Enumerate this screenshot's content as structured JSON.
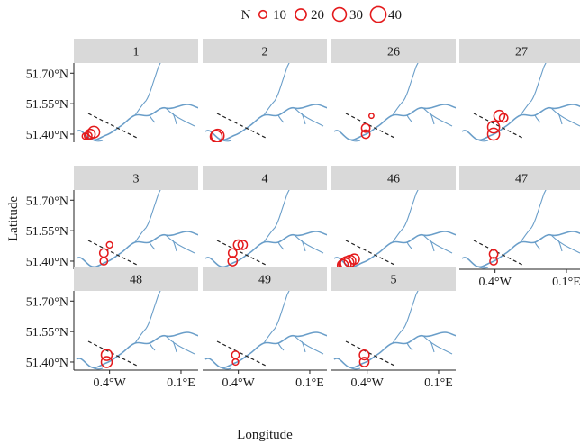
{
  "chart_data": {
    "type": "scatter",
    "subtype": "faceted-map",
    "title": "",
    "xlabel": "Longitude",
    "ylabel": "Latitude",
    "x_ticks": [
      {
        "value": -0.4,
        "label": "0.4°W"
      },
      {
        "value": 0.1,
        "label": "0.1°E"
      }
    ],
    "y_ticks": [
      {
        "value": 51.7,
        "label": "51.70°N"
      },
      {
        "value": 51.55,
        "label": "51.55°N"
      },
      {
        "value": 51.4,
        "label": "51.40°N"
      }
    ],
    "xlim": [
      -0.65,
      0.22
    ],
    "ylim": [
      51.36,
      51.75
    ],
    "grid": false,
    "legend": {
      "title": "N",
      "placement": "top",
      "entries": [
        {
          "label": "10",
          "value": 10
        },
        {
          "label": "20",
          "value": 20
        },
        {
          "label": "30",
          "value": 30
        },
        {
          "label": "40",
          "value": 40
        }
      ]
    },
    "colors": {
      "points": "#e41a1c",
      "river": "#6a9ec9",
      "strip": "#d9d9d9",
      "dashed_line": "#222222"
    },
    "facets": [
      {
        "label": "1",
        "points": [
          {
            "lon": -0.57,
            "lat": 51.39,
            "n": 8
          },
          {
            "lon": -0.55,
            "lat": 51.392,
            "n": 12
          },
          {
            "lon": -0.535,
            "lat": 51.4,
            "n": 20
          },
          {
            "lon": -0.51,
            "lat": 51.41,
            "n": 28
          }
        ]
      },
      {
        "label": "2",
        "points": [
          {
            "lon": -0.555,
            "lat": 51.388,
            "n": 30
          },
          {
            "lon": -0.545,
            "lat": 51.392,
            "n": 35
          }
        ]
      },
      {
        "label": "26",
        "points": [
          {
            "lon": -0.41,
            "lat": 51.4,
            "n": 15
          },
          {
            "lon": -0.41,
            "lat": 51.43,
            "n": 15
          },
          {
            "lon": -0.37,
            "lat": 51.49,
            "n": 5
          }
        ]
      },
      {
        "label": "27",
        "points": [
          {
            "lon": -0.41,
            "lat": 51.4,
            "n": 30
          },
          {
            "lon": -0.41,
            "lat": 51.435,
            "n": 30
          },
          {
            "lon": -0.37,
            "lat": 51.49,
            "n": 25
          },
          {
            "lon": -0.34,
            "lat": 51.48,
            "n": 15
          }
        ]
      },
      {
        "label": "3",
        "points": [
          {
            "lon": -0.44,
            "lat": 51.4,
            "n": 12
          },
          {
            "lon": -0.44,
            "lat": 51.44,
            "n": 15
          },
          {
            "lon": -0.4,
            "lat": 51.48,
            "n": 8
          }
        ]
      },
      {
        "label": "4",
        "points": [
          {
            "lon": -0.44,
            "lat": 51.4,
            "n": 18
          },
          {
            "lon": -0.44,
            "lat": 51.44,
            "n": 15
          },
          {
            "lon": -0.4,
            "lat": 51.48,
            "n": 20
          },
          {
            "lon": -0.37,
            "lat": 51.48,
            "n": 18
          }
        ]
      },
      {
        "label": "46",
        "points": [
          {
            "lon": -0.57,
            "lat": 51.38,
            "n": 25
          },
          {
            "lon": -0.555,
            "lat": 51.385,
            "n": 32
          },
          {
            "lon": -0.54,
            "lat": 51.39,
            "n": 38
          },
          {
            "lon": -0.52,
            "lat": 51.4,
            "n": 28
          },
          {
            "lon": -0.49,
            "lat": 51.41,
            "n": 22
          }
        ]
      },
      {
        "label": "47",
        "points": [
          {
            "lon": -0.41,
            "lat": 51.4,
            "n": 12
          },
          {
            "lon": -0.41,
            "lat": 51.435,
            "n": 15
          }
        ]
      },
      {
        "label": "48",
        "points": [
          {
            "lon": -0.42,
            "lat": 51.4,
            "n": 25
          },
          {
            "lon": -0.42,
            "lat": 51.435,
            "n": 25
          }
        ]
      },
      {
        "label": "49",
        "points": [
          {
            "lon": -0.42,
            "lat": 51.4,
            "n": 8
          },
          {
            "lon": -0.42,
            "lat": 51.435,
            "n": 12
          }
        ]
      },
      {
        "label": "5",
        "points": [
          {
            "lon": -0.42,
            "lat": 51.4,
            "n": 18
          },
          {
            "lon": -0.42,
            "lat": 51.435,
            "n": 20
          }
        ]
      }
    ]
  }
}
